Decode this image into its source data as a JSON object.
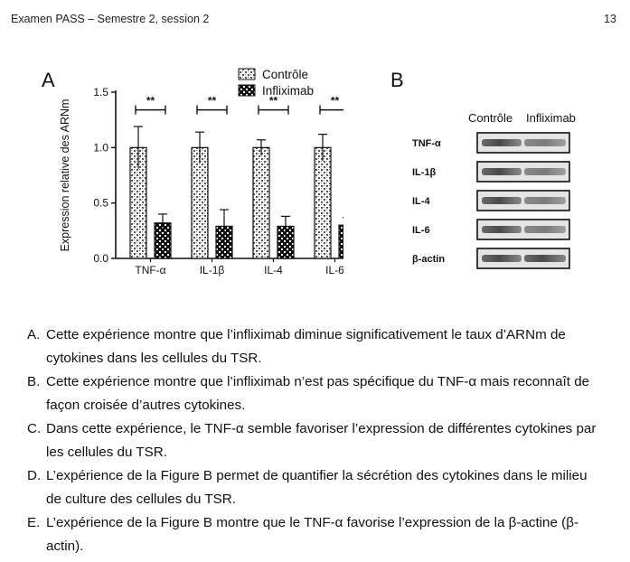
{
  "header": {
    "left": "Examen PASS – Semestre 2, session 2",
    "right": "13"
  },
  "figure_a": {
    "letter": "A"
  },
  "figure_b": {
    "letter": "B",
    "columns": [
      "Contrôle",
      "Infliximab"
    ],
    "rows": [
      "TNF-α",
      "IL-1β",
      "IL-4",
      "IL-6",
      "β-actin"
    ]
  },
  "chart_data": {
    "type": "bar",
    "categories": [
      "TNF-α",
      "IL-1β",
      "IL-4",
      "IL-6"
    ],
    "series": [
      {
        "name": "Contrôle",
        "values": [
          1.0,
          1.0,
          1.0,
          1.0
        ],
        "errors": [
          0.19,
          0.14,
          0.07,
          0.12
        ],
        "pattern": "checker"
      },
      {
        "name": "Infliximab",
        "values": [
          0.32,
          0.29,
          0.29,
          0.3
        ],
        "errors": [
          0.08,
          0.15,
          0.09,
          0.07
        ],
        "pattern": "diamond"
      }
    ],
    "ylabel": "Expression relative des ARNm",
    "xlabel": "",
    "ylim": [
      0,
      1.5
    ],
    "yticks": [
      "0.0",
      "0.5",
      "1.0",
      "1.5"
    ],
    "annotations": [
      "**",
      "**",
      "**",
      "**"
    ],
    "legend": "top"
  },
  "questions": [
    {
      "letter": "A.",
      "text": "Cette expérience montre que l’infliximab diminue significativement le taux d’ARNm de cytokines dans les cellules du TSR."
    },
    {
      "letter": "B.",
      "text": "Cette expérience montre que l’infliximab n’est pas spécifique du TNF-α mais reconnaît de façon croisée d’autres cytokines."
    },
    {
      "letter": "C.",
      "text": "Dans cette expérience, le TNF-α semble favoriser l’expression de différentes cytokines par les cellules du TSR."
    },
    {
      "letter": "D.",
      "text": "L’expérience de la Figure B permet de quantifier la sécrétion des cytokines dans le milieu de culture des cellules du TSR."
    },
    {
      "letter": "E.",
      "text": "L’expérience de la Figure B montre que le TNF-α favorise l’expression de la β-actine (β-actin)."
    }
  ]
}
